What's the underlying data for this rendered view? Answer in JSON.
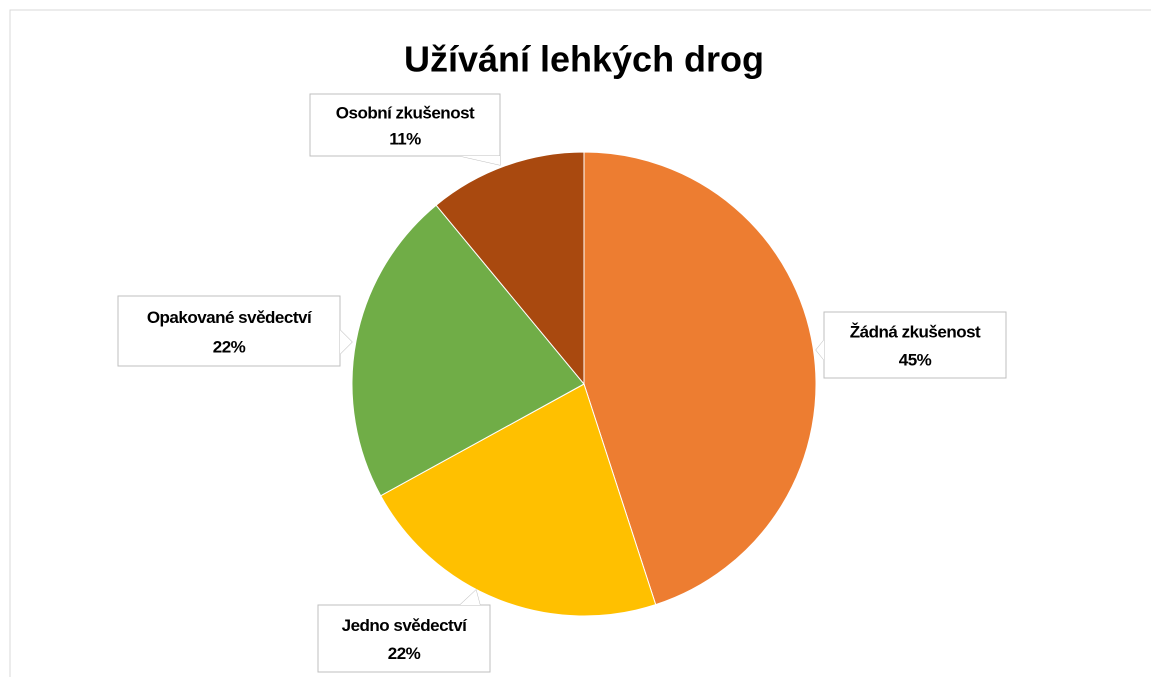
{
  "chart_data": {
    "type": "pie",
    "title": "Užívání lehkých drog",
    "categories": [
      "Žádná zkušenost",
      "Jedno svědectví",
      "Opakované svědectví",
      "Osobní zkušenost"
    ],
    "values": [
      45,
      22,
      22,
      11
    ],
    "value_labels": [
      "45%",
      "22%",
      "22%",
      "11%"
    ],
    "colors": [
      "#ED7D31",
      "#FFC000",
      "#70AD47",
      "#A9490F"
    ]
  }
}
